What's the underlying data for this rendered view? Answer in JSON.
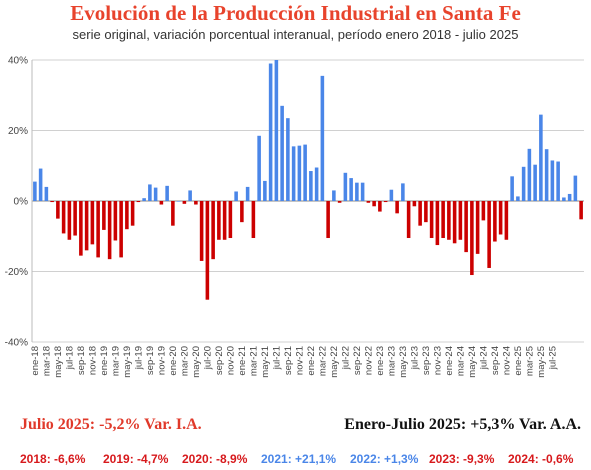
{
  "title": "Evolución de la Producción Industrial en Santa Fe",
  "subtitle": "serie original, variación porcentual interanual, período enero 2018 - julio 2025",
  "summary_left": "Julio 2025: -5,2% Var. I.A.",
  "summary_right": "Enero-Julio 2025: +5,3% Var. A.A.",
  "yearly": [
    {
      "label": "2018: -6,6%",
      "sign": "neg"
    },
    {
      "label": "2019: -4,7%",
      "sign": "neg"
    },
    {
      "label": "2020: -8,9%",
      "sign": "neg"
    },
    {
      "label": "2021: +21,1%",
      "sign": "pos"
    },
    {
      "label": "2022: +1,3%",
      "sign": "pos"
    },
    {
      "label": "2023: -9,3%",
      "sign": "neg"
    },
    {
      "label": "2024: -0,6%",
      "sign": "neg"
    }
  ],
  "colors": {
    "positive": "#4a86e8",
    "negative": "#cc0000",
    "title": "#e8432c"
  },
  "chart_data": {
    "type": "bar",
    "ylim": [
      -40,
      40
    ],
    "yticks": [
      -40,
      -20,
      0,
      20,
      40
    ],
    "ytick_labels": [
      "-40%",
      "-20%",
      "0%",
      "20%",
      "40%"
    ],
    "grid": true,
    "tick_labels": [
      "ene-18",
      "mar-18",
      "may-18",
      "jul-18",
      "sep-18",
      "nov-18",
      "ene-19",
      "mar-19",
      "may-19",
      "jul-19",
      "sep-19",
      "nov-19",
      "ene-20",
      "mar-20",
      "may-20",
      "jul-20",
      "sep-20",
      "nov-20",
      "ene-21",
      "mar-21",
      "may-21",
      "jul-21",
      "sep-21",
      "nov-21",
      "ene-22",
      "mar-22",
      "may-22",
      "jul-22",
      "sep-22",
      "nov-22",
      "ene-23",
      "mar-23",
      "may-23",
      "jul-23",
      "sep-23",
      "nov-23",
      "ene-24",
      "mar-24",
      "may-24",
      "jul-24",
      "sep-24",
      "nov-24",
      "ene-25",
      "mar-25",
      "may-25",
      "jul-25"
    ],
    "values": [
      5.5,
      9.2,
      4,
      -0.3,
      -5,
      -9.2,
      -11,
      -9.8,
      -15.5,
      -14,
      -12.3,
      -16,
      -8.2,
      -16.5,
      -11.2,
      -16,
      -8,
      -7,
      -0.3,
      0.8,
      4.7,
      3.8,
      -1,
      4.3,
      -7,
      0,
      -0.8,
      3,
      -1,
      -17,
      -28,
      -16.5,
      -11,
      -11,
      -10.5,
      2.7,
      -6,
      4,
      -10.5,
      18.5,
      5.7,
      39,
      40,
      27,
      23.5,
      15.5,
      15.7,
      16,
      8.5,
      9.5,
      35.5,
      -10.5,
      3,
      -0.5,
      8,
      6.5,
      5.2,
      5.2,
      -0.5,
      -1.5,
      -3,
      -0.3,
      3.2,
      -3.5,
      5,
      -10.5,
      -1.5,
      -7,
      -6,
      -10.5,
      -12.5,
      -10.5,
      -11,
      -12,
      -11,
      -14.5,
      -21,
      -15,
      -5.5,
      -19,
      -11.5,
      -9.5,
      -11,
      7,
      1.3,
      9.7,
      14.8,
      10.3,
      24.5,
      14.7,
      11.5,
      11.2,
      1,
      2,
      7.2,
      -5.2
    ]
  }
}
